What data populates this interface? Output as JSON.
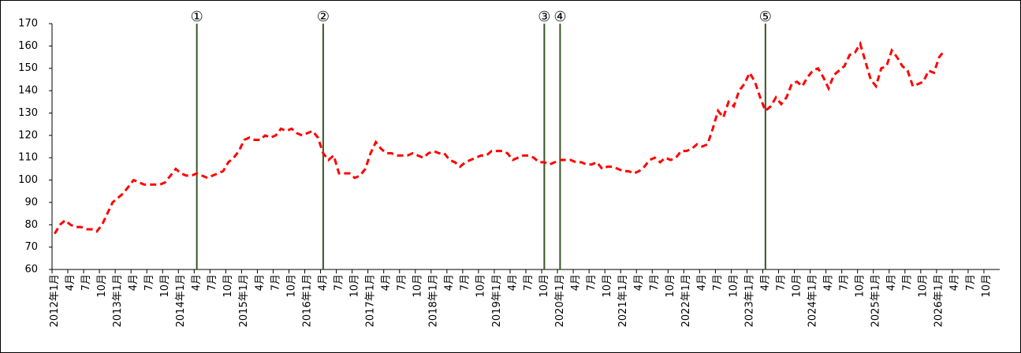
{
  "chart_data": {
    "type": "line",
    "categories": [
      "2012年1月",
      null,
      null,
      "4月",
      null,
      null,
      "7月",
      null,
      null,
      "10月",
      null,
      null,
      "2013年1月",
      null,
      null,
      "4月",
      null,
      null,
      "7月",
      null,
      null,
      "10月",
      null,
      null,
      "2014年1月",
      null,
      null,
      "4月",
      null,
      null,
      "7月",
      null,
      null,
      "10月",
      null,
      null,
      "2015年1月",
      null,
      null,
      "4月",
      null,
      null,
      "7月",
      null,
      null,
      "10月",
      null,
      null,
      "2016年1月",
      null,
      null,
      "4月",
      null,
      null,
      "7月",
      null,
      null,
      "10月",
      null,
      null,
      "2017年1月",
      null,
      null,
      "4月",
      null,
      null,
      "7月",
      null,
      null,
      "10月",
      null,
      null,
      "2018年1月",
      null,
      null,
      "4月",
      null,
      null,
      "7月",
      null,
      null,
      "10月",
      null,
      null,
      "2019年1月",
      null,
      null,
      "4月",
      null,
      null,
      "7月",
      null,
      null,
      "10月",
      null,
      null,
      "2020年1月",
      null,
      null,
      "4月",
      null,
      null,
      "7月",
      null,
      null,
      "10月",
      null,
      null,
      "2021年1月",
      null,
      null,
      "4月",
      null,
      null,
      "7月",
      null,
      null,
      "10月",
      null,
      null,
      "2022年1月",
      null,
      null,
      "4月",
      null,
      null,
      "7月",
      null,
      null,
      "10月",
      null,
      null,
      "2023年1月",
      null,
      null,
      "4月",
      null,
      null,
      "7月",
      null,
      null,
      "10月",
      null,
      null,
      "2024年1月",
      null,
      null,
      "4月",
      null,
      null,
      "7月",
      null,
      null,
      "10月",
      null,
      null,
      "2025年1月",
      null,
      null,
      "4月",
      null,
      null,
      "7月",
      null,
      null,
      "10月",
      null,
      null,
      "2026年1月",
      null,
      null,
      "4月",
      null,
      null,
      "7月",
      null,
      null,
      "10月",
      null,
      null
    ],
    "values": [
      76,
      80,
      82,
      80,
      79,
      79,
      78,
      78,
      77,
      80,
      85,
      90,
      92,
      94,
      97,
      100,
      99,
      98,
      98,
      98,
      98,
      99,
      102,
      105,
      103,
      102,
      102,
      103,
      102,
      101,
      102,
      103,
      104,
      108,
      110,
      113,
      118,
      119,
      118,
      118,
      120,
      119,
      120,
      123,
      122,
      123,
      121,
      120,
      121,
      122,
      119,
      112,
      109,
      111,
      103,
      103,
      103,
      101,
      102,
      105,
      112,
      117,
      114,
      112,
      112,
      111,
      111,
      111,
      112,
      111,
      110,
      112,
      113,
      112,
      112,
      109,
      108,
      106,
      108,
      109,
      110,
      111,
      111,
      113,
      113,
      113,
      112,
      109,
      110,
      111,
      111,
      110,
      108,
      108,
      107,
      108,
      109,
      109,
      109,
      108,
      108,
      107,
      107,
      108,
      105,
      106,
      106,
      105,
      104,
      104,
      103,
      104,
      106,
      109,
      110,
      108,
      110,
      109,
      110,
      113,
      113,
      114,
      116,
      115,
      116,
      123,
      131,
      128,
      135,
      133,
      140,
      143,
      148,
      144,
      137,
      131,
      133,
      137,
      134,
      137,
      143,
      144,
      142,
      146,
      149,
      150,
      146,
      141,
      147,
      149,
      151,
      156,
      157,
      161,
      153,
      145,
      142,
      150,
      151,
      158,
      155,
      151,
      149,
      142,
      143,
      144,
      149,
      148,
      155,
      158,
      null,
      null,
      null,
      null,
      null,
      null,
      null,
      null,
      null,
      null
    ],
    "color": "#ff0000",
    "dashed": true,
    "ylim": [
      60,
      170
    ],
    "yticks": [
      60,
      70,
      80,
      90,
      100,
      110,
      120,
      130,
      140,
      150,
      160,
      170
    ],
    "annotations": [
      {
        "label": "①",
        "x": 27
      },
      {
        "label": "②",
        "x": 51
      },
      {
        "label": "③",
        "x": 93
      },
      {
        "label": "④",
        "x": 96
      },
      {
        "label": "⑤",
        "x": 135
      }
    ],
    "annotation_color": "#375623"
  }
}
